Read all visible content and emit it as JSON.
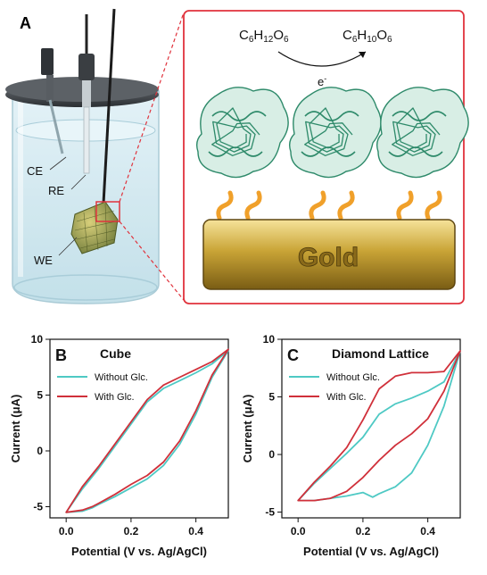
{
  "panel_a": {
    "letter": "A",
    "electrode_labels": [
      "CE",
      "RE",
      "WE"
    ],
    "reactant": "C6H12O6",
    "product": "C6H10O6",
    "electron": "e-",
    "substrate_label": "Gold",
    "colors": {
      "frame": "#e0323c",
      "linker": "#f0a02a",
      "enzyme": "#2e8a6a",
      "gold": "#c9a436"
    }
  },
  "chart_data": [
    {
      "type": "line",
      "panel": "B",
      "title": "Cube",
      "xlabel": "Potential (V vs. Ag/AgCl)",
      "ylabel": "Current (μA)",
      "xlim": [
        -0.05,
        0.5
      ],
      "ylim": [
        -6,
        10
      ],
      "xticks": [
        "0.0",
        "0.2",
        "0.4"
      ],
      "yticks": [
        "-5",
        "0",
        "5",
        "10"
      ],
      "legend": "top-left",
      "series": [
        {
          "name": "Without Glc.",
          "color": "#4ec9c4",
          "x": [
            0.0,
            0.05,
            0.1,
            0.15,
            0.2,
            0.25,
            0.3,
            0.35,
            0.4,
            0.45,
            0.5,
            0.45,
            0.4,
            0.35,
            0.3,
            0.25,
            0.2,
            0.15,
            0.1,
            0.08,
            0.05,
            0.0
          ],
          "y": [
            -5.5,
            -3.4,
            -1.6,
            0.4,
            2.4,
            4.4,
            5.6,
            6.3,
            7.0,
            7.8,
            9.0,
            6.6,
            3.3,
            0.6,
            -1.3,
            -2.5,
            -3.3,
            -4.1,
            -4.8,
            -5.1,
            -5.4,
            -5.5
          ]
        },
        {
          "name": "With Glc.",
          "color": "#d0303a",
          "x": [
            0.0,
            0.05,
            0.1,
            0.15,
            0.2,
            0.25,
            0.3,
            0.35,
            0.4,
            0.45,
            0.5,
            0.45,
            0.4,
            0.35,
            0.3,
            0.25,
            0.2,
            0.15,
            0.1,
            0.08,
            0.05,
            0.0
          ],
          "y": [
            -5.5,
            -3.2,
            -1.4,
            0.6,
            2.6,
            4.6,
            5.9,
            6.6,
            7.3,
            8.0,
            9.1,
            6.8,
            3.6,
            0.9,
            -1.0,
            -2.2,
            -3.0,
            -3.9,
            -4.7,
            -5.0,
            -5.3,
            -5.5
          ]
        }
      ]
    },
    {
      "type": "line",
      "panel": "C",
      "title": "Diamond Lattice",
      "xlabel": "Potential (V vs. Ag/AgCl)",
      "ylabel": "Current (μA)",
      "xlim": [
        -0.05,
        0.5
      ],
      "ylim": [
        -5.5,
        10
      ],
      "xticks": [
        "0.0",
        "0.2",
        "0.4"
      ],
      "yticks": [
        "-5",
        "0",
        "5",
        "10"
      ],
      "legend": "top-left",
      "series": [
        {
          "name": "Without Glc.",
          "color": "#4ec9c4",
          "x": [
            0.0,
            0.05,
            0.1,
            0.15,
            0.2,
            0.25,
            0.3,
            0.35,
            0.4,
            0.45,
            0.5,
            0.45,
            0.4,
            0.35,
            0.3,
            0.25,
            0.23,
            0.2,
            0.15,
            0.1,
            0.05,
            0.0
          ],
          "y": [
            -4.0,
            -2.5,
            -1.2,
            0.1,
            1.5,
            3.5,
            4.4,
            4.9,
            5.5,
            6.3,
            9.0,
            4.2,
            0.8,
            -1.6,
            -2.8,
            -3.4,
            -3.7,
            -3.3,
            -3.6,
            -3.8,
            -4.0,
            -4.0
          ]
        },
        {
          "name": "With Glc.",
          "color": "#d0303a",
          "x": [
            0.0,
            0.05,
            0.1,
            0.15,
            0.2,
            0.25,
            0.3,
            0.35,
            0.4,
            0.45,
            0.5,
            0.45,
            0.4,
            0.35,
            0.3,
            0.25,
            0.2,
            0.15,
            0.1,
            0.05,
            0.0
          ],
          "y": [
            -4.0,
            -2.4,
            -1.0,
            0.6,
            3.0,
            5.7,
            6.8,
            7.1,
            7.1,
            7.2,
            9.0,
            5.5,
            3.1,
            1.8,
            0.8,
            -0.5,
            -2.0,
            -3.2,
            -3.8,
            -4.0,
            -4.0
          ]
        }
      ]
    }
  ]
}
